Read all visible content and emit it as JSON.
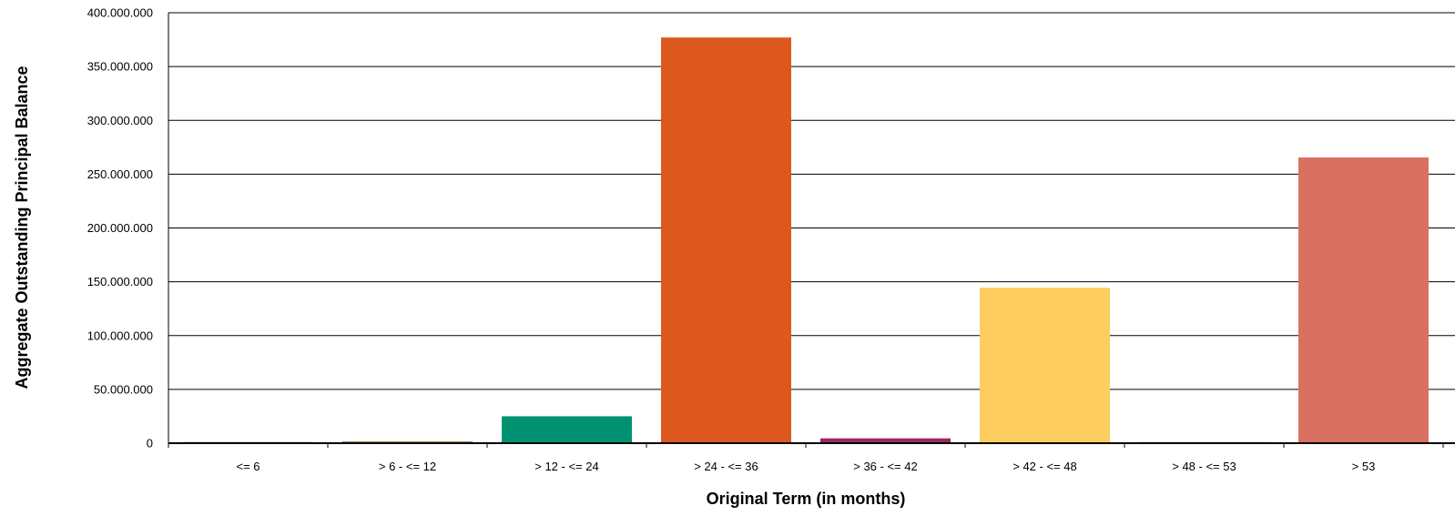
{
  "chart_data": {
    "type": "bar",
    "title": "",
    "xlabel": "Original Term (in months)",
    "ylabel": "Aggregate Outstanding Principal Balance",
    "categories": [
      "<= 6",
      "> 6 - <= 12",
      "> 12 - <= 24",
      "> 24 - <= 36",
      "> 36 - <= 42",
      "> 42 - <= 48",
      "> 48 - <= 53",
      "> 53"
    ],
    "values": [
      300000,
      1800000,
      25000000,
      377000000,
      4500000,
      144500000,
      700000,
      265500000
    ],
    "colors": [
      "#1f3864",
      "#a5866a",
      "#009270",
      "#dc581f",
      "#9a2a5e",
      "#fdcd60",
      "#5a7a8c",
      "#d97062"
    ],
    "ylim": [
      0,
      400000000
    ],
    "yticks": [
      0,
      50000000,
      100000000,
      150000000,
      200000000,
      250000000,
      300000000,
      350000000,
      400000000
    ],
    "ytick_labels": [
      "0",
      "50.000.000",
      "100.000.000",
      "150.000.000",
      "200.000.000",
      "250.000.000",
      "300.000.000",
      "350.000.000",
      "400.000.000"
    ],
    "grid": true,
    "legend": "none"
  }
}
